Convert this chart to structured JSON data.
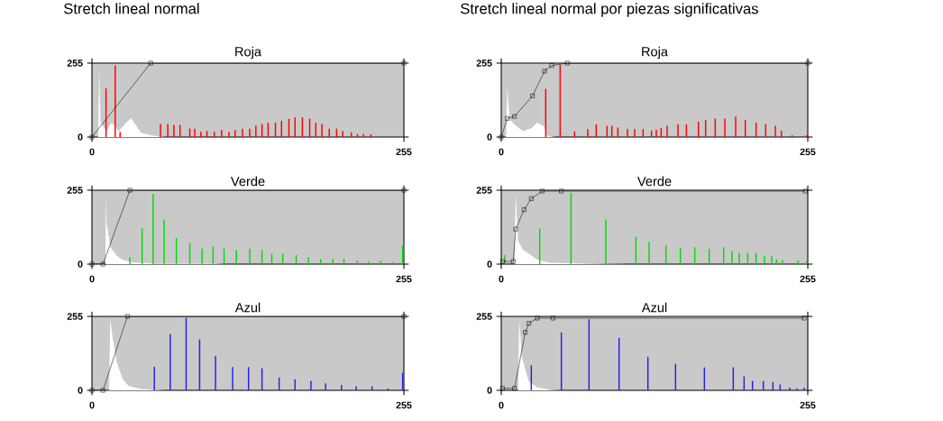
{
  "chart_data": [
    {
      "type": "line",
      "subtitle": "Stretch lineal normal",
      "title": "Roja",
      "xlim": [
        0,
        255
      ],
      "ylim": [
        0,
        255
      ],
      "xticks": [
        0,
        255
      ],
      "yticks": [
        0,
        255
      ],
      "grid": false,
      "series": [
        {
          "type": "area",
          "color": "#ffffff",
          "x": [
            0,
            5,
            6,
            7,
            12,
            16,
            22,
            28,
            32,
            36,
            40,
            50,
            60
          ],
          "values": [
            0,
            0,
            236,
            50,
            20,
            50,
            20,
            50,
            65,
            40,
            15,
            5,
            0
          ]
        },
        {
          "type": "bar",
          "color": "#ff0000",
          "x": [
            11.5,
            19,
            23,
            56,
            62,
            67,
            72,
            80,
            84,
            89,
            94,
            100,
            106,
            112,
            117,
            123,
            129,
            134,
            139,
            144,
            150,
            155,
            161,
            166,
            172,
            178,
            183,
            188,
            194,
            200,
            205,
            212,
            217,
            222,
            228,
            255
          ],
          "values": [
            168,
            247,
            18,
            45,
            45,
            42,
            42,
            29,
            29,
            18,
            21,
            18,
            24,
            18,
            24,
            29,
            29,
            40,
            45,
            50,
            50,
            56,
            63,
            68,
            68,
            63,
            50,
            45,
            29,
            29,
            21,
            16,
            10,
            10,
            10,
            10
          ]
        },
        {
          "color": "#000000",
          "marker": "square",
          "x": [
            0,
            48,
            255
          ],
          "values": [
            0,
            255,
            255
          ]
        }
      ]
    },
    {
      "type": "line",
      "subtitle": "Stretch lineal normal por piezas significativas",
      "title": "Roja",
      "xlim": [
        0,
        255
      ],
      "ylim": [
        0,
        255
      ],
      "xticks": [
        0,
        255
      ],
      "yticks": [
        0,
        255
      ],
      "grid": false,
      "series": [
        {
          "type": "area",
          "color": "#ffffff",
          "x": [
            0,
            4,
            5,
            7,
            12,
            18,
            25,
            30,
            36,
            38,
            45
          ],
          "values": [
            0,
            0,
            172,
            60,
            40,
            20,
            30,
            50,
            35,
            5,
            0
          ]
        },
        {
          "type": "bar",
          "color": "#ff0000",
          "x": [
            37,
            49,
            61,
            72,
            79,
            88,
            92,
            97,
            105,
            111,
            118,
            125,
            129,
            133,
            138,
            147,
            154,
            164,
            170,
            178,
            186,
            195,
            203,
            212,
            220,
            228,
            233,
            242,
            254
          ],
          "values": [
            166,
            249,
            20,
            28,
            44,
            39,
            39,
            33,
            28,
            28,
            28,
            22,
            26,
            31,
            39,
            44,
            44,
            53,
            59,
            64,
            64,
            71,
            59,
            50,
            44,
            39,
            22,
            6,
            6
          ]
        },
        {
          "color": "#000000",
          "marker": "square",
          "x": [
            0,
            5,
            11,
            26,
            36,
            42,
            55,
            255
          ],
          "values": [
            0,
            64,
            71,
            142,
            227,
            247,
            255,
            255
          ]
        }
      ]
    },
    {
      "type": "line",
      "title": "Verde",
      "xlim": [
        0,
        255
      ],
      "ylim": [
        0,
        255
      ],
      "xticks": [
        0,
        255
      ],
      "yticks": [
        0,
        255
      ],
      "grid": false,
      "series": [
        {
          "type": "area",
          "color": "#ffffff",
          "x": [
            0,
            11,
            11.5,
            12,
            15,
            20,
            25,
            35,
            50,
            100,
            108
          ],
          "values": [
            0,
            0,
            240,
            140,
            60,
            30,
            15,
            5,
            2,
            2,
            0
          ]
        },
        {
          "type": "bar",
          "color": "#00dd00",
          "x": [
            31,
            41,
            50,
            59,
            69,
            80,
            90,
            99,
            108,
            118,
            129,
            139,
            147,
            156,
            167,
            177,
            187,
            197,
            206,
            217,
            226,
            236,
            246,
            254
          ],
          "values": [
            23,
            123,
            242,
            154,
            90,
            72,
            54,
            61,
            54,
            49,
            54,
            49,
            36,
            36,
            31,
            23,
            18,
            18,
            18,
            12,
            9,
            12,
            7,
            64
          ]
        },
        {
          "color": "#000000",
          "marker": "square",
          "x": [
            0,
            9,
            31,
            255
          ],
          "values": [
            0,
            0,
            255,
            255
          ]
        }
      ]
    },
    {
      "type": "line",
      "title": "Verde",
      "xlim": [
        0,
        255
      ],
      "ylim": [
        0,
        255
      ],
      "xticks": [
        0,
        255
      ],
      "yticks": [
        0,
        255
      ],
      "grid": false,
      "series": [
        {
          "type": "area",
          "color": "#ffffff",
          "x": [
            0,
            11,
            12,
            14,
            18,
            25,
            30,
            40,
            60,
            106
          ],
          "values": [
            0,
            0,
            246,
            80,
            50,
            30,
            15,
            5,
            3,
            0
          ]
        },
        {
          "type": "bar",
          "color": "#00dd00",
          "x": [
            3,
            32,
            58,
            87,
            112,
            123,
            137,
            149,
            161,
            173,
            185,
            192,
            198,
            205,
            212,
            219,
            225,
            229,
            234,
            247,
            254
          ],
          "values": [
            31,
            123,
            246,
            154,
            95,
            76,
            65,
            56,
            58,
            53,
            58,
            45,
            39,
            39,
            39,
            28,
            28,
            17,
            13,
            13,
            9
          ]
        },
        {
          "color": "#000000",
          "marker": "square",
          "x": [
            1,
            10,
            12,
            19,
            25,
            34,
            50,
            253
          ],
          "values": [
            9,
            9,
            121,
            188,
            226,
            252,
            252,
            252
          ]
        }
      ]
    },
    {
      "type": "line",
      "title": "Azul",
      "xlim": [
        0,
        255
      ],
      "ylim": [
        0,
        255
      ],
      "xticks": [
        0,
        255
      ],
      "yticks": [
        0,
        255
      ],
      "grid": false,
      "series": [
        {
          "type": "area",
          "color": "#ffffff",
          "x": [
            0,
            14,
            15,
            17,
            20,
            25,
            30,
            40,
            60
          ],
          "values": [
            0,
            0,
            245,
            180,
            100,
            40,
            15,
            5,
            0
          ]
        },
        {
          "type": "bar",
          "color": "#2222ee",
          "x": [
            51,
            64,
            77,
            88,
            101,
            115,
            128,
            139,
            153,
            166,
            179,
            191,
            204,
            216,
            229,
            242,
            254
          ],
          "values": [
            82,
            194,
            250,
            176,
            119,
            80,
            80,
            76,
            44,
            38,
            33,
            24,
            19,
            14,
            14,
            6,
            61
          ]
        },
        {
          "color": "#000000",
          "marker": "square",
          "x": [
            0,
            9,
            29,
            255
          ],
          "values": [
            0,
            0,
            255,
            255
          ]
        }
      ]
    },
    {
      "type": "line",
      "title": "Azul",
      "xlim": [
        0,
        255
      ],
      "ylim": [
        0,
        255
      ],
      "xticks": [
        0,
        255
      ],
      "yticks": [
        0,
        255
      ],
      "grid": false,
      "series": [
        {
          "type": "area",
          "color": "#ffffff",
          "x": [
            0,
            14,
            15,
            17,
            20,
            23,
            30,
            40,
            50
          ],
          "values": [
            0,
            0,
            247,
            120,
            70,
            30,
            10,
            2,
            0
          ]
        },
        {
          "type": "bar",
          "color": "#2222ee",
          "x": [
            25,
            50,
            73,
            98,
            122,
            145,
            169,
            193,
            202,
            209,
            218,
            226,
            232,
            240,
            246,
            252
          ],
          "values": [
            86,
            200,
            245,
            181,
            116,
            92,
            79,
            79,
            48,
            33,
            33,
            29,
            20,
            9,
            7,
            9
          ]
        },
        {
          "color": "#000000",
          "marker": "square",
          "x": [
            1,
            11,
            20,
            23,
            30,
            43,
            252
          ],
          "values": [
            7,
            7,
            200,
            231,
            249,
            249,
            249
          ]
        }
      ]
    }
  ]
}
